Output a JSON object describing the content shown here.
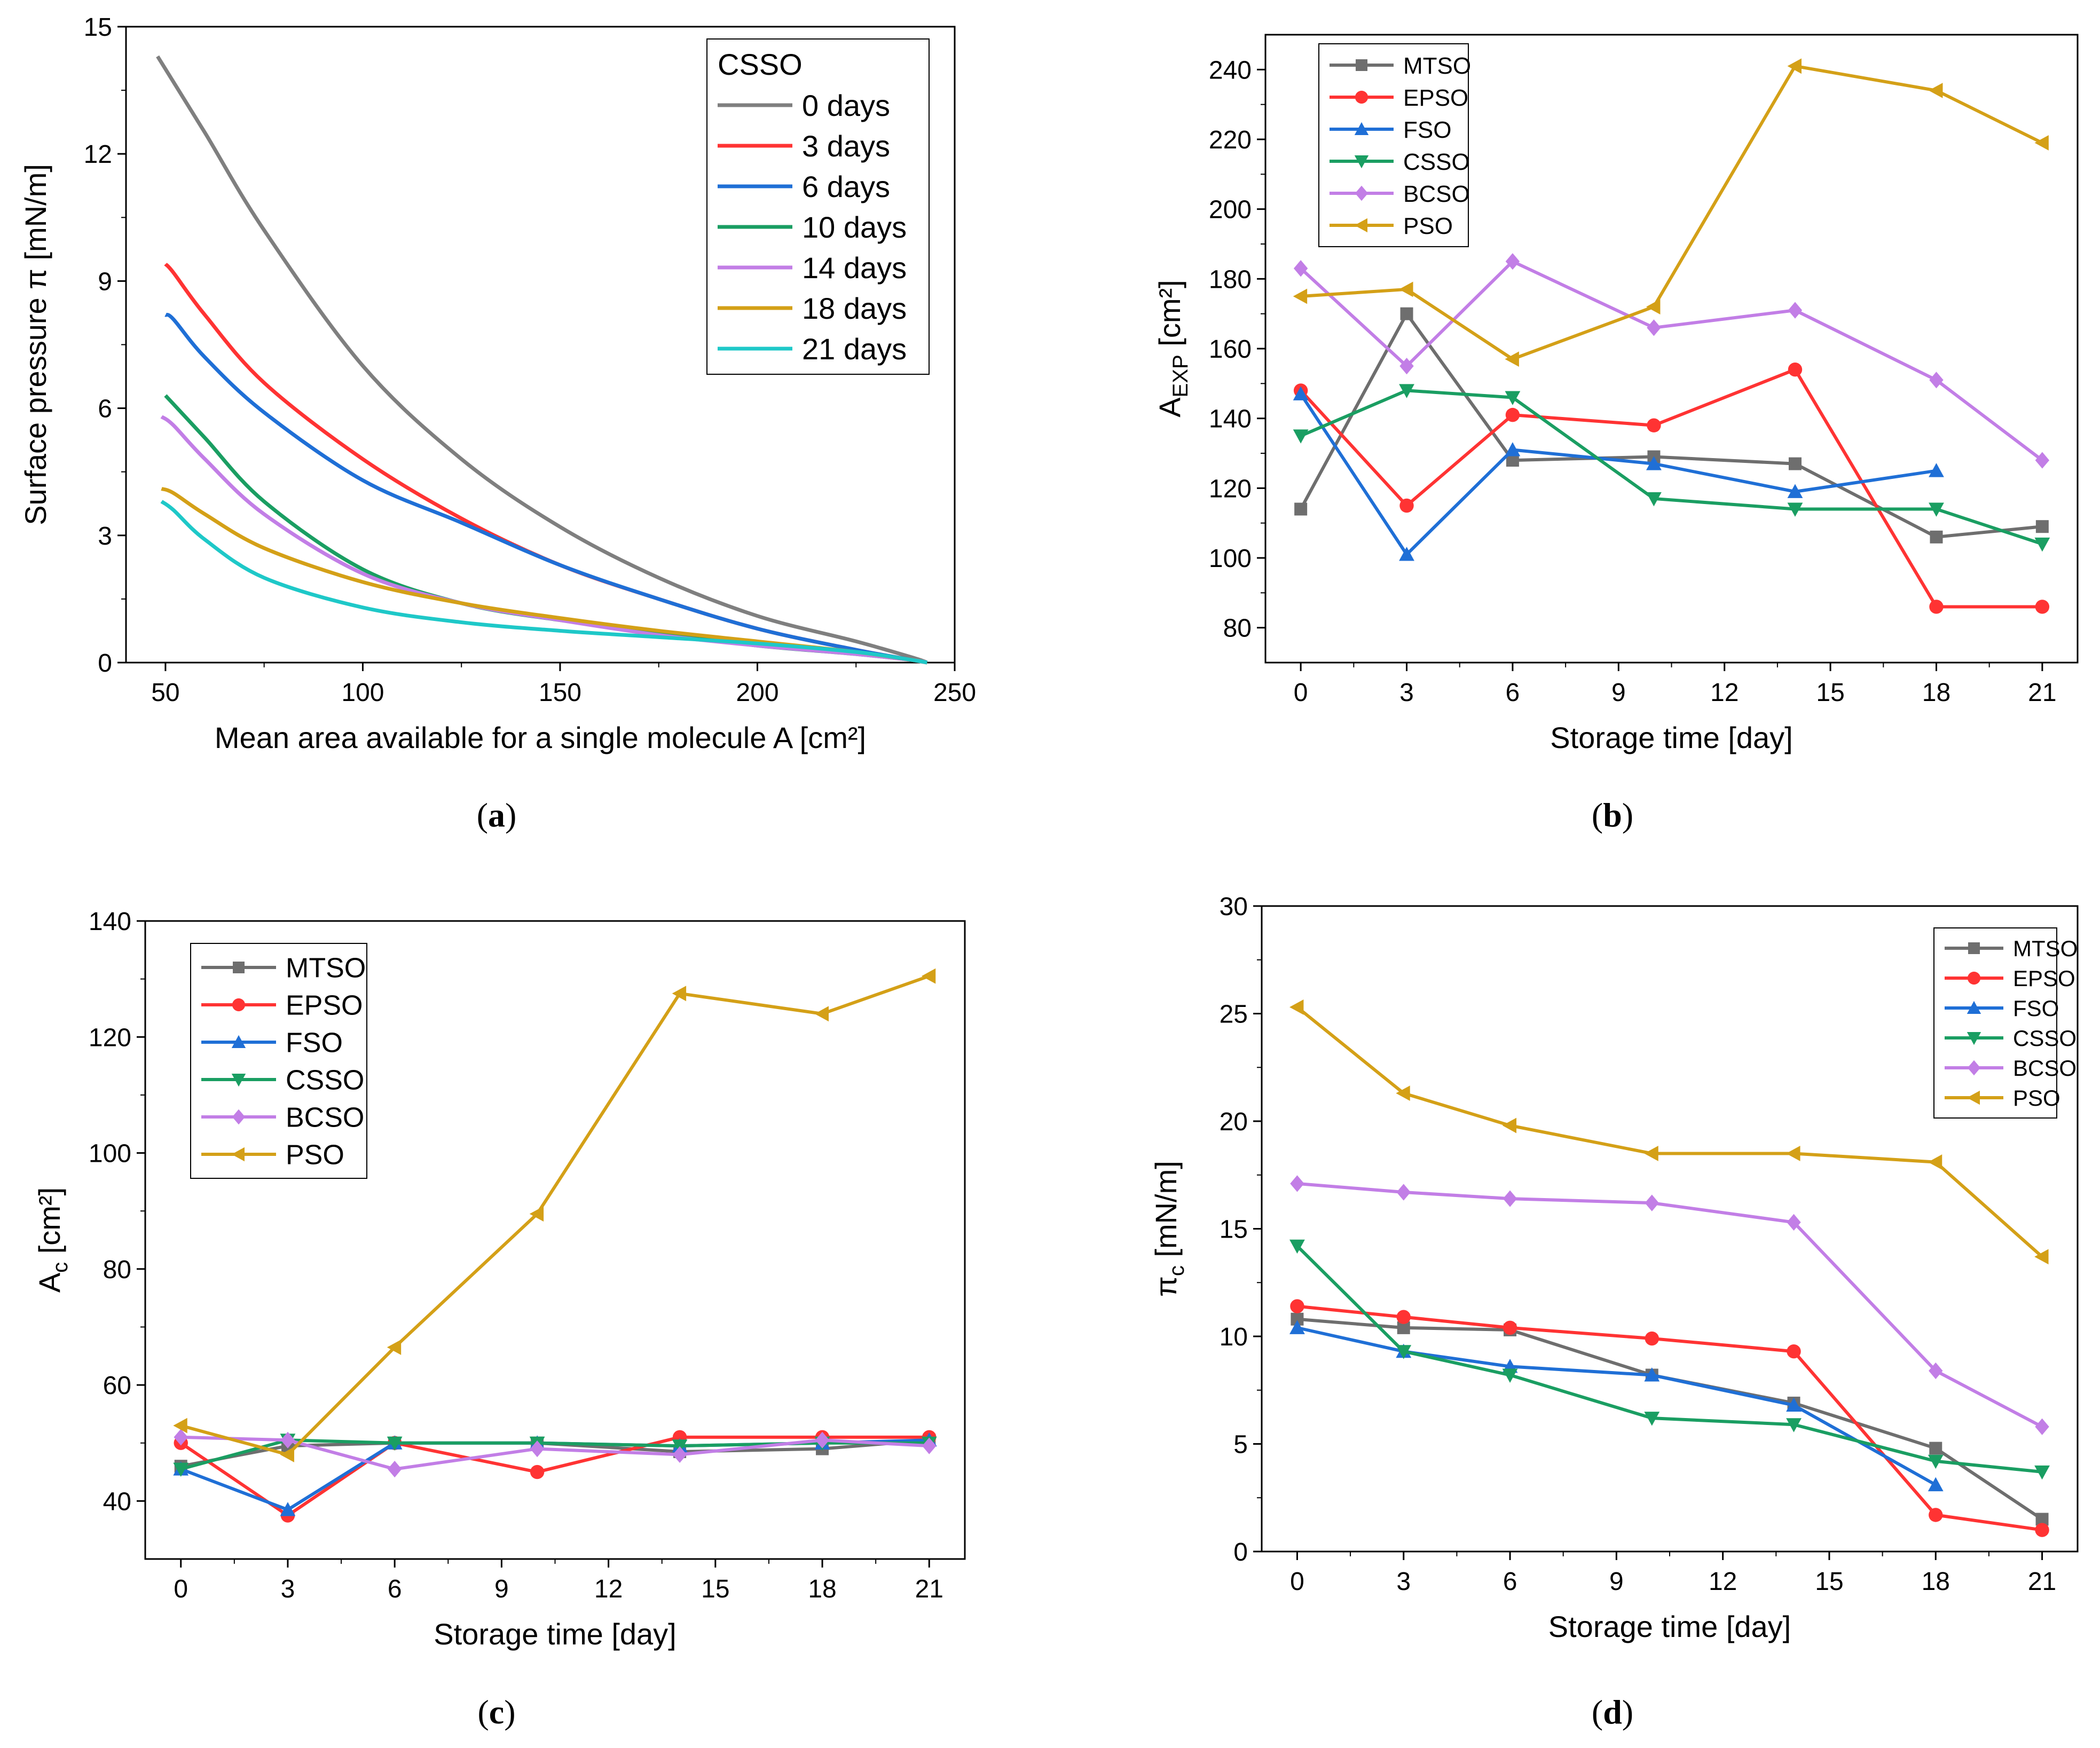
{
  "figure": {
    "panel_labels": [
      {
        "open": "(",
        "letter": "a",
        "close": ")"
      },
      {
        "open": "(",
        "letter": "b",
        "close": ")"
      },
      {
        "open": "(",
        "letter": "c",
        "close": ")"
      },
      {
        "open": "(",
        "letter": "d",
        "close": ")"
      }
    ]
  },
  "chart_data": [
    {
      "id": "a",
      "type": "line",
      "title": "",
      "xlabel": "Mean area available for a single molecule A [cm²]",
      "ylabel": "Surface pressure π [mN/m]",
      "xlim": [
        40,
        250
      ],
      "ylim": [
        0,
        15
      ],
      "xticks": [
        50,
        100,
        150,
        200,
        250
      ],
      "yticks": [
        0,
        3,
        6,
        9,
        12,
        15
      ],
      "legend": {
        "title": "CSSO",
        "position": "top-right"
      },
      "series": [
        {
          "name": "0 days",
          "color": "#7f7f7f",
          "x": [
            48,
            50,
            60,
            75,
            100,
            125,
            150,
            175,
            200,
            225,
            240,
            243
          ],
          "y": [
            14.3,
            14.0,
            12.5,
            10.2,
            7.0,
            4.8,
            3.2,
            2.0,
            1.1,
            0.5,
            0.1,
            0.0
          ]
        },
        {
          "name": "3 days",
          "color": "#ff3333",
          "x": [
            50,
            52,
            60,
            75,
            100,
            125,
            150,
            175,
            200,
            225,
            240,
            243
          ],
          "y": [
            9.4,
            9.2,
            8.2,
            6.6,
            4.8,
            3.4,
            2.3,
            1.5,
            0.8,
            0.3,
            0.05,
            0.0
          ]
        },
        {
          "name": "6 days",
          "color": "#1f6fd6",
          "x": [
            50,
            52,
            60,
            75,
            100,
            125,
            150,
            175,
            200,
            225,
            240,
            243
          ],
          "y": [
            8.2,
            8.1,
            7.2,
            5.9,
            4.3,
            3.3,
            2.3,
            1.5,
            0.8,
            0.3,
            0.05,
            0.0
          ]
        },
        {
          "name": "10 days",
          "color": "#1a9e62",
          "x": [
            50,
            52,
            60,
            75,
            100,
            125,
            150,
            175,
            200,
            225,
            240,
            243
          ],
          "y": [
            6.3,
            6.1,
            5.3,
            3.8,
            2.2,
            1.4,
            1.0,
            0.7,
            0.4,
            0.2,
            0.05,
            0.0
          ]
        },
        {
          "name": "14 days",
          "color": "#c27ee6",
          "x": [
            49,
            52,
            60,
            75,
            100,
            125,
            150,
            175,
            200,
            225,
            240,
            243
          ],
          "y": [
            5.8,
            5.6,
            4.8,
            3.5,
            2.1,
            1.4,
            1.0,
            0.65,
            0.4,
            0.2,
            0.05,
            0.0
          ]
        },
        {
          "name": "18 days",
          "color": "#d4a017",
          "x": [
            49,
            52,
            60,
            75,
            100,
            125,
            150,
            175,
            200,
            225,
            240,
            243
          ],
          "y": [
            4.1,
            4.0,
            3.5,
            2.7,
            1.9,
            1.4,
            1.05,
            0.75,
            0.5,
            0.25,
            0.05,
            0.0
          ]
        },
        {
          "name": "21 days",
          "color": "#1ec8c8",
          "x": [
            49,
            52,
            60,
            75,
            100,
            125,
            150,
            175,
            200,
            225,
            240,
            243
          ],
          "y": [
            3.8,
            3.6,
            2.9,
            2.0,
            1.3,
            0.95,
            0.75,
            0.6,
            0.45,
            0.25,
            0.05,
            0.0
          ]
        }
      ]
    },
    {
      "id": "b",
      "type": "line",
      "title": "",
      "xlabel": "Storage time [day]",
      "ylabel": "A",
      "ylabel_sub": "EXP",
      "ylabel_unit": " [cm²]",
      "xlim": [
        -1,
        22
      ],
      "ylim": [
        70,
        250
      ],
      "xticks": [
        0,
        3,
        6,
        9,
        12,
        15,
        18,
        21
      ],
      "yticks": [
        80,
        100,
        120,
        140,
        160,
        180,
        200,
        220,
        240
      ],
      "legend": {
        "position": "top-left"
      },
      "series": [
        {
          "name": "MTSO",
          "color": "#6e6e6e",
          "marker": "square",
          "x": [
            0,
            3,
            6,
            10,
            14,
            18,
            21
          ],
          "y": [
            114,
            170,
            128,
            129,
            127,
            106,
            109
          ]
        },
        {
          "name": "EPSO",
          "color": "#ff3333",
          "marker": "circle",
          "x": [
            0,
            3,
            6,
            10,
            14,
            18,
            21
          ],
          "y": [
            148,
            115,
            141,
            138,
            154,
            86,
            86
          ]
        },
        {
          "name": "FSO",
          "color": "#1f6fd6",
          "marker": "triangle-up",
          "x": [
            0,
            3,
            6,
            10,
            14,
            18
          ],
          "y": [
            147,
            101,
            131,
            127,
            119,
            125
          ]
        },
        {
          "name": "CSSO",
          "color": "#1a9e62",
          "marker": "triangle-down",
          "x": [
            0,
            3,
            6,
            10,
            14,
            18,
            21
          ],
          "y": [
            135,
            148,
            146,
            117,
            114,
            114,
            104
          ]
        },
        {
          "name": "BCSO",
          "color": "#c27ee6",
          "marker": "diamond",
          "x": [
            0,
            3,
            6,
            10,
            14,
            18,
            21
          ],
          "y": [
            183,
            155,
            185,
            166,
            171,
            151,
            128
          ]
        },
        {
          "name": "PSO",
          "color": "#d4a017",
          "marker": "triangle-left",
          "x": [
            0,
            3,
            6,
            10,
            14,
            18,
            21
          ],
          "y": [
            175,
            177,
            157,
            172,
            241,
            234,
            219
          ]
        }
      ]
    },
    {
      "id": "c",
      "type": "line",
      "title": "",
      "xlabel": "Storage time [day]",
      "ylabel": "A",
      "ylabel_sub": "c",
      "ylabel_unit": " [cm²]",
      "xlim": [
        -1,
        22
      ],
      "ylim": [
        30,
        140
      ],
      "xticks": [
        0,
        3,
        6,
        9,
        12,
        15,
        18,
        21
      ],
      "yticks": [
        40,
        60,
        80,
        100,
        120,
        140
      ],
      "legend": {
        "position": "top-left"
      },
      "series": [
        {
          "name": "MTSO",
          "color": "#6e6e6e",
          "marker": "square",
          "x": [
            0,
            3,
            6,
            10,
            14,
            18,
            21
          ],
          "y": [
            46,
            49.5,
            50,
            50,
            48.5,
            49,
            50.5
          ]
        },
        {
          "name": "EPSO",
          "color": "#ff3333",
          "marker": "circle",
          "x": [
            0,
            3,
            6,
            10,
            14,
            18,
            21
          ],
          "y": [
            50,
            37.5,
            50,
            45,
            51,
            51,
            51
          ]
        },
        {
          "name": "FSO",
          "color": "#1f6fd6",
          "marker": "triangle-up",
          "x": [
            0,
            3,
            6,
            10,
            14,
            18,
            21
          ],
          "y": [
            45.5,
            38.5,
            50,
            50,
            49.5,
            50,
            50.5
          ]
        },
        {
          "name": "CSSO",
          "color": "#1a9e62",
          "marker": "triangle-down",
          "x": [
            0,
            3,
            6,
            10,
            14,
            18,
            21
          ],
          "y": [
            45.5,
            50.5,
            50,
            50,
            49.5,
            50,
            50
          ]
        },
        {
          "name": "BCSO",
          "color": "#c27ee6",
          "marker": "diamond",
          "x": [
            0,
            3,
            6,
            10,
            14,
            18,
            21
          ],
          "y": [
            51,
            50.5,
            45.5,
            49,
            48,
            50.5,
            49.5
          ]
        },
        {
          "name": "PSO",
          "color": "#d4a017",
          "marker": "triangle-left",
          "x": [
            0,
            3,
            6,
            10,
            14,
            18,
            21
          ],
          "y": [
            53,
            48,
            66.5,
            89.5,
            127.5,
            124,
            130.5
          ]
        }
      ]
    },
    {
      "id": "d",
      "type": "line",
      "title": "",
      "xlabel": "Storage time [day]",
      "ylabel": "π",
      "ylabel_sub": "c",
      "ylabel_unit": " [mN/m]",
      "xlim": [
        -1,
        22
      ],
      "ylim": [
        0,
        30
      ],
      "xticks": [
        0,
        3,
        6,
        9,
        12,
        15,
        18,
        21
      ],
      "yticks": [
        0,
        5,
        10,
        15,
        20,
        25,
        30
      ],
      "legend": {
        "position": "top-right"
      },
      "series": [
        {
          "name": "MTSO",
          "color": "#6e6e6e",
          "marker": "square",
          "x": [
            0,
            3,
            6,
            10,
            14,
            18,
            21
          ],
          "y": [
            10.8,
            10.4,
            10.3,
            8.2,
            6.9,
            4.8,
            1.5
          ]
        },
        {
          "name": "EPSO",
          "color": "#ff3333",
          "marker": "circle",
          "x": [
            0,
            3,
            6,
            10,
            14,
            18,
            21
          ],
          "y": [
            11.4,
            10.9,
            10.4,
            9.9,
            9.3,
            1.7,
            1.0
          ]
        },
        {
          "name": "FSO",
          "color": "#1f6fd6",
          "marker": "triangle-up",
          "x": [
            0,
            3,
            6,
            10,
            14,
            18
          ],
          "y": [
            10.4,
            9.3,
            8.6,
            8.2,
            6.8,
            3.1
          ]
        },
        {
          "name": "CSSO",
          "color": "#1a9e62",
          "marker": "triangle-down",
          "x": [
            0,
            3,
            6,
            10,
            14,
            18,
            21
          ],
          "y": [
            14.2,
            9.3,
            8.2,
            6.2,
            5.9,
            4.2,
            3.7
          ]
        },
        {
          "name": "BCSO",
          "color": "#c27ee6",
          "marker": "diamond",
          "x": [
            0,
            3,
            6,
            10,
            14,
            18,
            21
          ],
          "y": [
            17.1,
            16.7,
            16.4,
            16.2,
            15.3,
            8.4,
            5.8
          ]
        },
        {
          "name": "PSO",
          "color": "#d4a017",
          "marker": "triangle-left",
          "x": [
            0,
            3,
            6,
            10,
            14,
            18,
            21
          ],
          "y": [
            25.3,
            21.3,
            19.8,
            18.5,
            18.5,
            18.1,
            13.7
          ]
        }
      ]
    }
  ]
}
